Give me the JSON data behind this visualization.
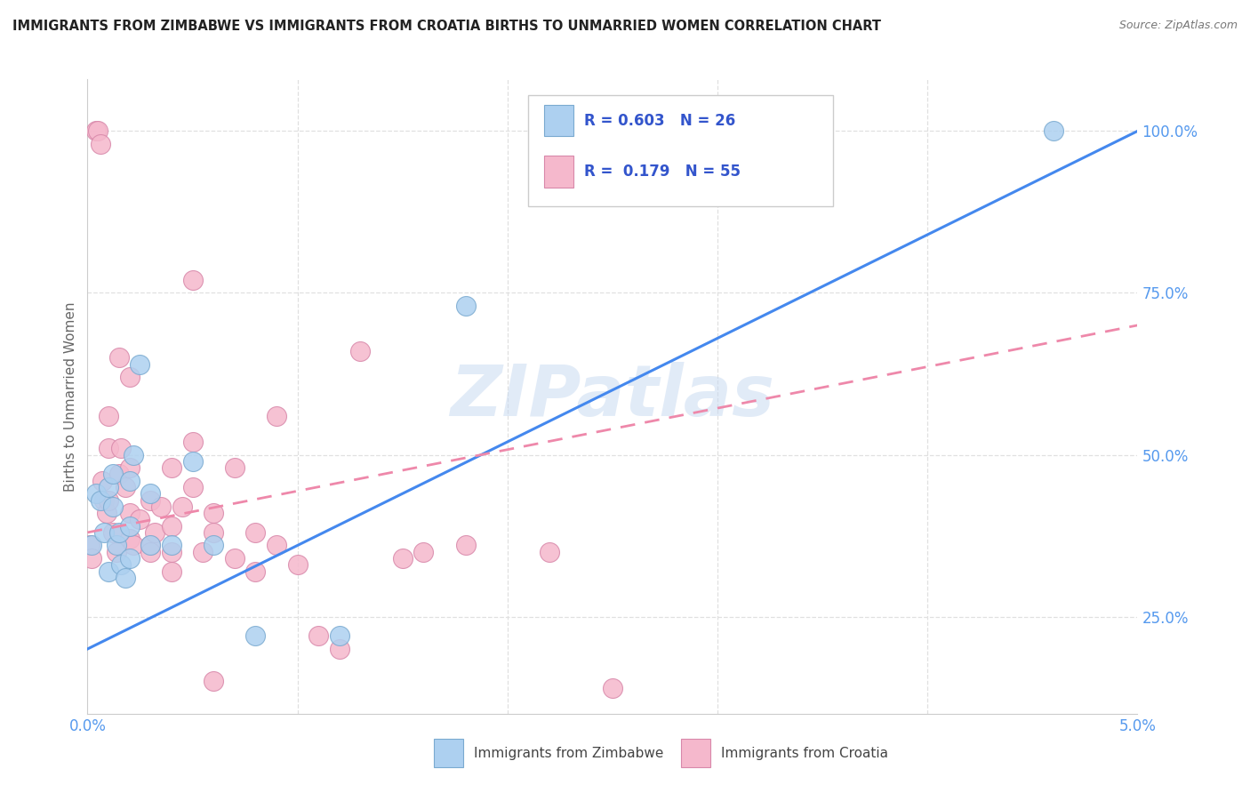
{
  "title": "IMMIGRANTS FROM ZIMBABWE VS IMMIGRANTS FROM CROATIA BIRTHS TO UNMARRIED WOMEN CORRELATION CHART",
  "source": "Source: ZipAtlas.com",
  "ylabel": "Births to Unmarried Women",
  "xlim": [
    0.0,
    0.05
  ],
  "ylim": [
    0.1,
    1.08
  ],
  "xtick_positions": [
    0.0,
    0.05
  ],
  "xtick_labels": [
    "0.0%",
    "5.0%"
  ],
  "ytick_positions": [
    0.25,
    0.5,
    0.75,
    1.0
  ],
  "ytick_labels": [
    "25.0%",
    "50.0%",
    "75.0%",
    "100.0%"
  ],
  "background_color": "#ffffff",
  "grid_color": "#e0e0e0",
  "watermark": "ZIPatlas",
  "zimbabwe_color": "#add0f0",
  "zimbabwe_edge": "#7aaad0",
  "croatia_color": "#f5b8cc",
  "croatia_edge": "#d888aa",
  "line_blue": "#4488ee",
  "line_pink": "#ee88aa",
  "tick_color": "#5599ee",
  "legend_text_color": "#3355cc",
  "zimbabwe_x": [
    0.0002,
    0.0004,
    0.0006,
    0.0008,
    0.001,
    0.001,
    0.0012,
    0.0012,
    0.0014,
    0.0015,
    0.0016,
    0.0018,
    0.002,
    0.002,
    0.002,
    0.0022,
    0.0025,
    0.003,
    0.003,
    0.004,
    0.005,
    0.006,
    0.008,
    0.012,
    0.018,
    0.046
  ],
  "zimbabwe_y": [
    0.36,
    0.44,
    0.43,
    0.38,
    0.45,
    0.32,
    0.47,
    0.42,
    0.36,
    0.38,
    0.33,
    0.31,
    0.34,
    0.39,
    0.46,
    0.5,
    0.64,
    0.36,
    0.44,
    0.36,
    0.49,
    0.36,
    0.22,
    0.22,
    0.73,
    1.0
  ],
  "croatia_x": [
    0.0001,
    0.0002,
    0.0004,
    0.0005,
    0.0006,
    0.0007,
    0.0008,
    0.0009,
    0.001,
    0.001,
    0.001,
    0.0012,
    0.0014,
    0.0015,
    0.0015,
    0.0016,
    0.0018,
    0.002,
    0.002,
    0.002,
    0.002,
    0.0022,
    0.0025,
    0.003,
    0.003,
    0.003,
    0.0032,
    0.0035,
    0.004,
    0.004,
    0.004,
    0.004,
    0.0045,
    0.005,
    0.005,
    0.005,
    0.0055,
    0.006,
    0.006,
    0.006,
    0.007,
    0.007,
    0.008,
    0.008,
    0.009,
    0.009,
    0.01,
    0.011,
    0.012,
    0.013,
    0.015,
    0.016,
    0.018,
    0.022,
    0.025
  ],
  "croatia_y": [
    0.36,
    0.34,
    1.0,
    1.0,
    0.98,
    0.46,
    0.43,
    0.41,
    0.56,
    0.51,
    0.43,
    0.38,
    0.35,
    0.65,
    0.47,
    0.51,
    0.45,
    0.37,
    0.41,
    0.48,
    0.62,
    0.36,
    0.4,
    0.43,
    0.36,
    0.35,
    0.38,
    0.42,
    0.48,
    0.35,
    0.32,
    0.39,
    0.42,
    0.45,
    0.77,
    0.52,
    0.35,
    0.15,
    0.38,
    0.41,
    0.34,
    0.48,
    0.32,
    0.38,
    0.56,
    0.36,
    0.33,
    0.22,
    0.2,
    0.66,
    0.34,
    0.35,
    0.36,
    0.35,
    0.14
  ],
  "line_blue_x0": 0.0,
  "line_blue_y0": 0.2,
  "line_blue_x1": 0.05,
  "line_blue_y1": 1.0,
  "line_pink_x0": 0.0,
  "line_pink_y0": 0.38,
  "line_pink_x1": 0.05,
  "line_pink_y1": 0.7
}
